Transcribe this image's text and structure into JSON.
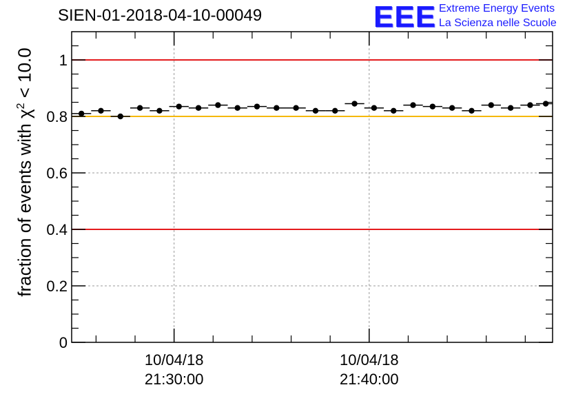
{
  "title": "SIEN-01-2018-04-10-00049",
  "logo": {
    "mark": "EEE",
    "line1": "Extreme Energy Events",
    "line2": "La Scienza nelle Scuole",
    "color": "#1a1aff"
  },
  "chart_data": {
    "type": "scatter",
    "title": "SIEN-01-2018-04-10-00049",
    "ylabel_main": "fraction of events with ",
    "ylabel_symbol": "χ",
    "ylabel_sup": "2",
    "ylabel_tail": " < 10.0",
    "xlabel": "",
    "ylim": [
      0,
      1.1
    ],
    "yticks": [
      0,
      0.2,
      0.4,
      0.6,
      0.8,
      1
    ],
    "ytick_labels": [
      "0",
      "0.2",
      "0.4",
      "0.6",
      "0.8",
      "1"
    ],
    "xlim_minutes": [
      -5.25,
      19.4
    ],
    "xticks": [
      {
        "minutes": 0,
        "date": "10/04/18",
        "time": "21:30:00"
      },
      {
        "minutes": 10,
        "date": "10/04/18",
        "time": "21:40:00"
      }
    ],
    "x_bin_width_minutes": 1.0,
    "x_minutes": [
      -4.75,
      -3.75,
      -2.75,
      -1.75,
      -0.75,
      0.25,
      1.25,
      2.25,
      3.25,
      4.25,
      5.25,
      6.25,
      7.25,
      8.25,
      9.25,
      10.25,
      11.25,
      12.25,
      13.25,
      14.25,
      15.25,
      16.25,
      17.25,
      18.25,
      19.05
    ],
    "y": [
      0.81,
      0.82,
      0.8,
      0.83,
      0.82,
      0.835,
      0.83,
      0.84,
      0.83,
      0.835,
      0.83,
      0.83,
      0.82,
      0.82,
      0.845,
      0.83,
      0.82,
      0.84,
      0.835,
      0.83,
      0.82,
      0.84,
      0.83,
      0.84,
      0.845
    ],
    "reference_lines": [
      {
        "y": 1.0,
        "color": "#e41a1c"
      },
      {
        "y": 0.8,
        "color": "#f5b800"
      },
      {
        "y": 0.4,
        "color": "#e41a1c"
      }
    ],
    "grid": true
  }
}
